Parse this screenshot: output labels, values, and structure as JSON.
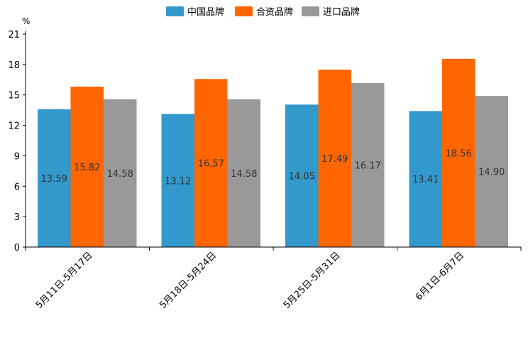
{
  "chart_data": {
    "type": "bar",
    "title": "",
    "xlabel": "",
    "ylabel": "%",
    "ylim": [
      0,
      21
    ],
    "yticks": [
      0,
      3,
      6,
      9,
      12,
      15,
      18,
      21
    ],
    "grid": false,
    "legend_position": "top-center",
    "categories": [
      "5月11日-5月17日",
      "5月18日-5月24日",
      "5月25日-5月31日",
      "6月1日-6月7日"
    ],
    "series": [
      {
        "name": "中国品牌",
        "color": "#3399cc",
        "values": [
          13.59,
          13.12,
          14.05,
          13.41
        ],
        "labels": [
          "13.59",
          "13.12",
          "14.05",
          "13.41"
        ]
      },
      {
        "name": "合资品牌",
        "color": "#ff6600",
        "values": [
          15.82,
          16.57,
          17.49,
          18.56
        ],
        "labels": [
          "15.82",
          "16.57",
          "17.49",
          "18.56"
        ]
      },
      {
        "name": "进口品牌",
        "color": "#999999",
        "values": [
          14.58,
          14.58,
          16.17,
          14.9
        ],
        "labels": [
          "14.58",
          "14.58",
          "16.17",
          "14.90"
        ]
      }
    ]
  }
}
